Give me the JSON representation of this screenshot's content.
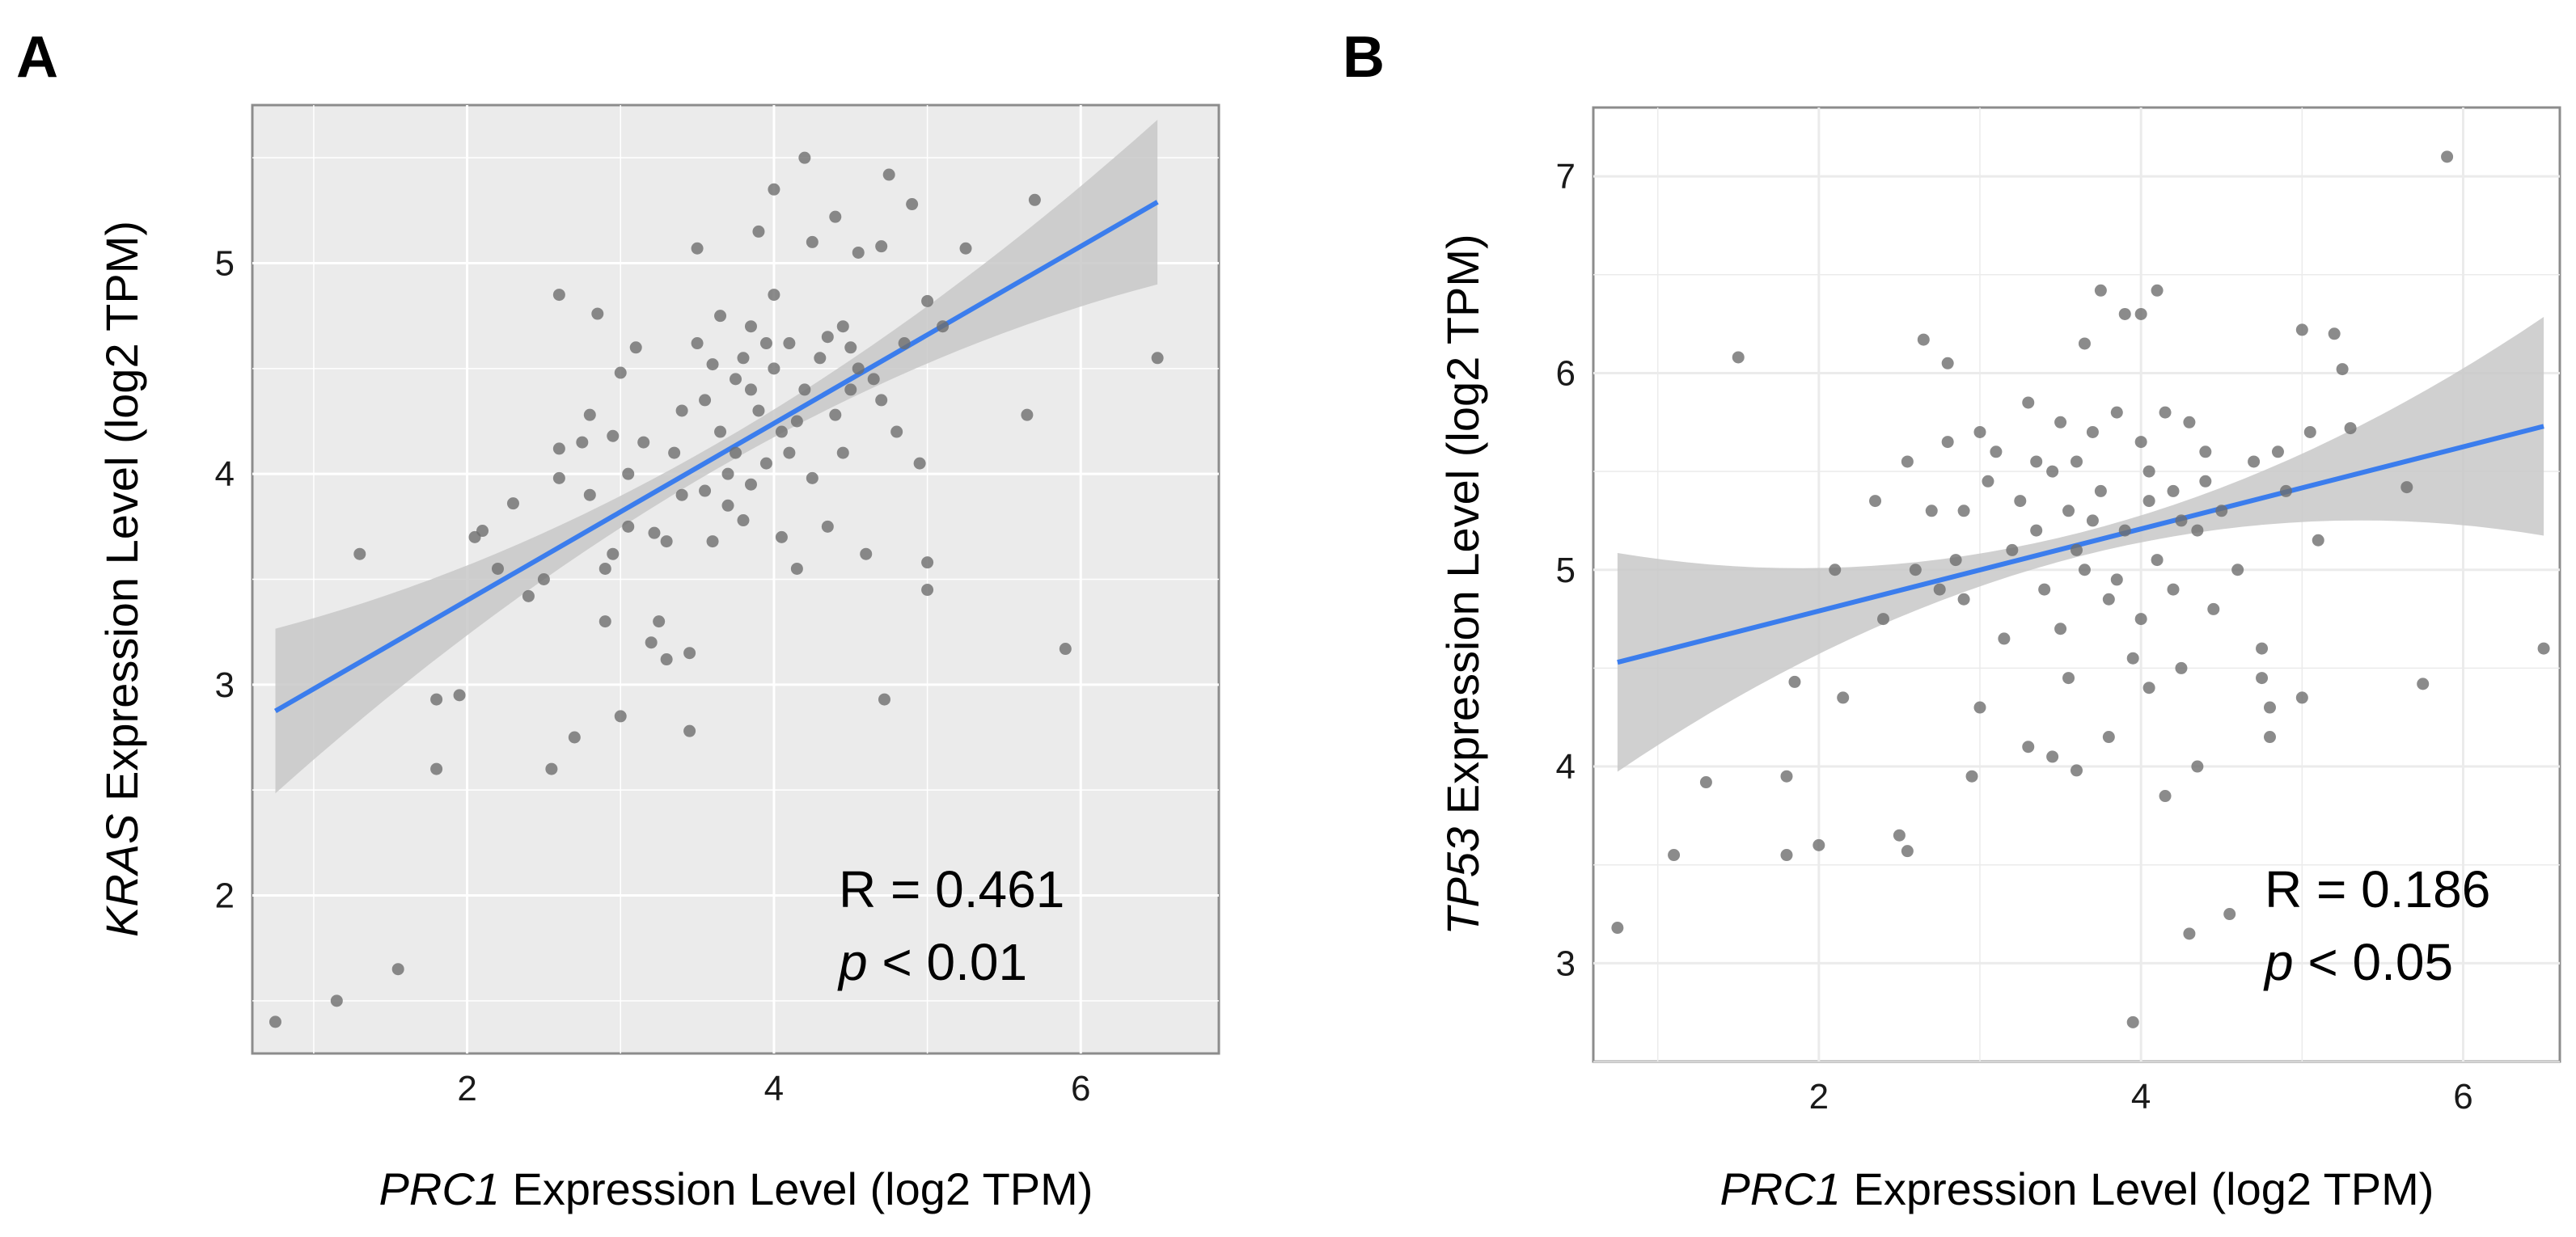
{
  "chart_data": [
    {
      "type": "scatter",
      "panel_label": "A",
      "xlabel_gene": "PRC1",
      "xlabel_rest": " Expression Level (log2 TPM)",
      "ylabel_gene": "KRAS",
      "ylabel_rest": " Expression Level (log2 TPM)",
      "xlim": [
        0.6,
        6.9
      ],
      "ylim": [
        1.25,
        5.75
      ],
      "xticks": [
        2,
        4,
        6
      ],
      "yticks": [
        2,
        3,
        4,
        5
      ],
      "xtick_labels": [
        "2",
        "4",
        "6"
      ],
      "ytick_labels": [
        "2",
        "3",
        "4",
        "5"
      ],
      "annotation_r": "R = 0.461",
      "annotation_p_symbol": "p",
      "annotation_p_rest": " < 0.01",
      "fit": {
        "slope": 0.42,
        "intercept": 2.56,
        "x_range": [
          0.75,
          6.5
        ],
        "ci_halfwidth_mean": 0.06,
        "ci_halfwidth_slope": 0.04
      },
      "colors": {
        "point": "#6e6e6e",
        "line": "#3b7ded",
        "band": "#c8c8c8",
        "panel_bg": "#ebebeb",
        "grid": "#ffffff"
      },
      "points": [
        [
          0.75,
          1.4
        ],
        [
          1.15,
          1.5
        ],
        [
          1.55,
          1.65
        ],
        [
          1.3,
          3.62
        ],
        [
          1.8,
          2.6
        ],
        [
          1.8,
          2.93
        ],
        [
          1.95,
          2.95
        ],
        [
          2.05,
          3.7
        ],
        [
          2.1,
          3.73
        ],
        [
          2.2,
          3.55
        ],
        [
          2.3,
          3.86
        ],
        [
          2.4,
          3.42
        ],
        [
          2.5,
          3.5
        ],
        [
          2.55,
          2.6
        ],
        [
          2.6,
          4.85
        ],
        [
          2.6,
          4.12
        ],
        [
          2.6,
          3.98
        ],
        [
          2.7,
          2.75
        ],
        [
          2.75,
          4.15
        ],
        [
          2.8,
          3.9
        ],
        [
          2.8,
          4.28
        ],
        [
          2.85,
          4.76
        ],
        [
          2.9,
          3.55
        ],
        [
          2.9,
          3.3
        ],
        [
          2.95,
          4.18
        ],
        [
          3.0,
          4.48
        ],
        [
          3.0,
          2.85
        ],
        [
          3.05,
          3.75
        ],
        [
          3.1,
          4.6
        ],
        [
          3.15,
          4.15
        ],
        [
          3.2,
          3.2
        ],
        [
          3.22,
          3.72
        ],
        [
          3.25,
          3.3
        ],
        [
          3.3,
          3.12
        ],
        [
          3.35,
          4.1
        ],
        [
          3.4,
          3.9
        ],
        [
          3.4,
          4.3
        ],
        [
          3.45,
          3.15
        ],
        [
          3.45,
          2.78
        ],
        [
          3.5,
          5.07
        ],
        [
          3.5,
          4.62
        ],
        [
          3.55,
          4.35
        ],
        [
          3.55,
          3.92
        ],
        [
          3.6,
          3.68
        ],
        [
          3.65,
          4.75
        ],
        [
          3.65,
          4.2
        ],
        [
          3.7,
          4.0
        ],
        [
          3.7,
          3.85
        ],
        [
          3.75,
          4.45
        ],
        [
          3.8,
          4.55
        ],
        [
          3.8,
          3.78
        ],
        [
          3.85,
          4.7
        ],
        [
          3.85,
          3.95
        ],
        [
          3.9,
          5.15
        ],
        [
          3.9,
          4.3
        ],
        [
          3.95,
          4.05
        ],
        [
          4.0,
          5.35
        ],
        [
          4.0,
          4.85
        ],
        [
          4.0,
          4.5
        ],
        [
          4.05,
          4.2
        ],
        [
          4.05,
          3.7
        ],
        [
          4.1,
          4.62
        ],
        [
          4.1,
          4.1
        ],
        [
          4.15,
          3.55
        ],
        [
          4.2,
          5.5
        ],
        [
          4.2,
          4.4
        ],
        [
          4.25,
          5.1
        ],
        [
          4.25,
          3.98
        ],
        [
          4.3,
          4.55
        ],
        [
          4.35,
          4.65
        ],
        [
          4.35,
          3.75
        ],
        [
          4.4,
          5.22
        ],
        [
          4.4,
          4.28
        ],
        [
          4.45,
          4.7
        ],
        [
          4.5,
          4.6
        ],
        [
          4.5,
          4.4
        ],
        [
          4.55,
          5.05
        ],
        [
          4.55,
          4.5
        ],
        [
          4.6,
          3.62
        ],
        [
          4.65,
          4.45
        ],
        [
          4.7,
          5.08
        ],
        [
          4.7,
          4.35
        ],
        [
          4.72,
          2.93
        ],
        [
          4.75,
          5.42
        ],
        [
          4.8,
          4.2
        ],
        [
          4.85,
          4.62
        ],
        [
          4.9,
          5.28
        ],
        [
          4.95,
          4.05
        ],
        [
          5.0,
          3.58
        ],
        [
          5.0,
          3.45
        ],
        [
          5.0,
          4.82
        ],
        [
          5.1,
          4.7
        ],
        [
          5.25,
          5.07
        ],
        [
          5.65,
          4.28
        ],
        [
          5.7,
          5.3
        ],
        [
          5.9,
          3.17
        ],
        [
          6.5,
          4.55
        ],
        [
          3.3,
          3.68
        ],
        [
          3.6,
          4.52
        ],
        [
          3.95,
          4.62
        ],
        [
          4.15,
          4.25
        ],
        [
          3.75,
          4.1
        ],
        [
          3.05,
          4.0
        ],
        [
          2.95,
          3.62
        ],
        [
          4.45,
          4.1
        ],
        [
          3.85,
          4.4
        ]
      ]
    },
    {
      "type": "scatter",
      "panel_label": "B",
      "xlabel_gene": "PRC1",
      "xlabel_rest": " Expression Level (log2 TPM)",
      "ylabel_gene": "TP53",
      "ylabel_rest": " Expression Level (log2 TPM)",
      "xlim": [
        0.6,
        6.6
      ],
      "ylim": [
        2.5,
        7.35
      ],
      "xticks": [
        2,
        4,
        6
      ],
      "yticks": [
        3,
        4,
        5,
        6,
        7
      ],
      "xtick_labels": [
        "2",
        "4",
        "6"
      ],
      "ytick_labels": [
        "3",
        "4",
        "5",
        "6",
        "7"
      ],
      "annotation_r": "R = 0.186",
      "annotation_p_symbol": "p",
      "annotation_p_rest": " < 0.05",
      "fit": {
        "slope": 0.2087,
        "intercept": 4.373,
        "x_range": [
          0.75,
          6.5
        ],
        "ci_halfwidth_mean": 0.06,
        "ci_halfwidth_slope": 0.06
      },
      "colors": {
        "point": "#6e6e6e",
        "line": "#3b7ded",
        "band": "#c8c8c8",
        "panel_bg": "#ffffff",
        "grid": "#ebebeb"
      },
      "points": [
        [
          0.75,
          3.18
        ],
        [
          1.1,
          3.55
        ],
        [
          1.3,
          3.92
        ],
        [
          1.5,
          6.08
        ],
        [
          1.8,
          3.95
        ],
        [
          1.8,
          3.55
        ],
        [
          1.85,
          4.43
        ],
        [
          2.0,
          3.6
        ],
        [
          2.1,
          5.0
        ],
        [
          2.15,
          4.35
        ],
        [
          2.35,
          5.35
        ],
        [
          2.4,
          4.75
        ],
        [
          2.5,
          3.65
        ],
        [
          2.55,
          3.57
        ],
        [
          2.55,
          5.55
        ],
        [
          2.6,
          5.0
        ],
        [
          2.65,
          6.17
        ],
        [
          2.7,
          5.3
        ],
        [
          2.75,
          4.9
        ],
        [
          2.8,
          5.65
        ],
        [
          2.8,
          6.05
        ],
        [
          2.85,
          5.05
        ],
        [
          2.9,
          4.85
        ],
        [
          2.95,
          3.95
        ],
        [
          3.0,
          5.7
        ],
        [
          3.0,
          4.3
        ],
        [
          3.05,
          5.45
        ],
        [
          3.1,
          5.6
        ],
        [
          3.15,
          4.65
        ],
        [
          3.2,
          5.1
        ],
        [
          3.25,
          5.35
        ],
        [
          3.3,
          5.85
        ],
        [
          3.3,
          4.1
        ],
        [
          3.35,
          5.2
        ],
        [
          3.4,
          4.9
        ],
        [
          3.45,
          5.5
        ],
        [
          3.45,
          4.05
        ],
        [
          3.5,
          5.75
        ],
        [
          3.5,
          4.7
        ],
        [
          3.55,
          5.3
        ],
        [
          3.55,
          4.45
        ],
        [
          3.6,
          5.55
        ],
        [
          3.6,
          3.98
        ],
        [
          3.65,
          6.15
        ],
        [
          3.65,
          5.0
        ],
        [
          3.7,
          5.7
        ],
        [
          3.75,
          6.42
        ],
        [
          3.75,
          5.4
        ],
        [
          3.8,
          4.85
        ],
        [
          3.8,
          4.15
        ],
        [
          3.85,
          5.8
        ],
        [
          3.9,
          6.3
        ],
        [
          3.9,
          5.2
        ],
        [
          3.95,
          4.55
        ],
        [
          3.95,
          2.7
        ],
        [
          4.0,
          6.3
        ],
        [
          4.0,
          5.65
        ],
        [
          4.0,
          4.75
        ],
        [
          4.05,
          5.35
        ],
        [
          4.05,
          4.4
        ],
        [
          4.1,
          6.42
        ],
        [
          4.1,
          5.05
        ],
        [
          4.15,
          5.8
        ],
        [
          4.15,
          3.85
        ],
        [
          4.2,
          5.4
        ],
        [
          4.2,
          4.9
        ],
        [
          4.25,
          4.5
        ],
        [
          4.3,
          5.75
        ],
        [
          4.3,
          3.15
        ],
        [
          4.35,
          5.2
        ],
        [
          4.35,
          4.0
        ],
        [
          4.4,
          5.6
        ],
        [
          4.45,
          4.8
        ],
        [
          4.5,
          5.3
        ],
        [
          4.55,
          3.25
        ],
        [
          4.6,
          5.0
        ],
        [
          4.7,
          5.55
        ],
        [
          4.75,
          4.6
        ],
        [
          4.75,
          4.45
        ],
        [
          4.8,
          4.3
        ],
        [
          4.8,
          4.15
        ],
        [
          4.85,
          5.6
        ],
        [
          4.9,
          5.4
        ],
        [
          5.0,
          6.22
        ],
        [
          5.0,
          4.35
        ],
        [
          5.05,
          5.7
        ],
        [
          5.1,
          5.15
        ],
        [
          5.2,
          6.2
        ],
        [
          5.25,
          6.02
        ],
        [
          5.3,
          5.72
        ],
        [
          5.65,
          5.42
        ],
        [
          5.75,
          4.42
        ],
        [
          5.9,
          7.1
        ],
        [
          6.5,
          4.6
        ],
        [
          3.35,
          5.55
        ],
        [
          3.7,
          5.25
        ],
        [
          4.05,
          5.5
        ],
        [
          4.25,
          5.25
        ],
        [
          3.6,
          5.1
        ],
        [
          4.4,
          5.45
        ],
        [
          2.9,
          5.3
        ],
        [
          3.85,
          4.95
        ]
      ]
    }
  ]
}
